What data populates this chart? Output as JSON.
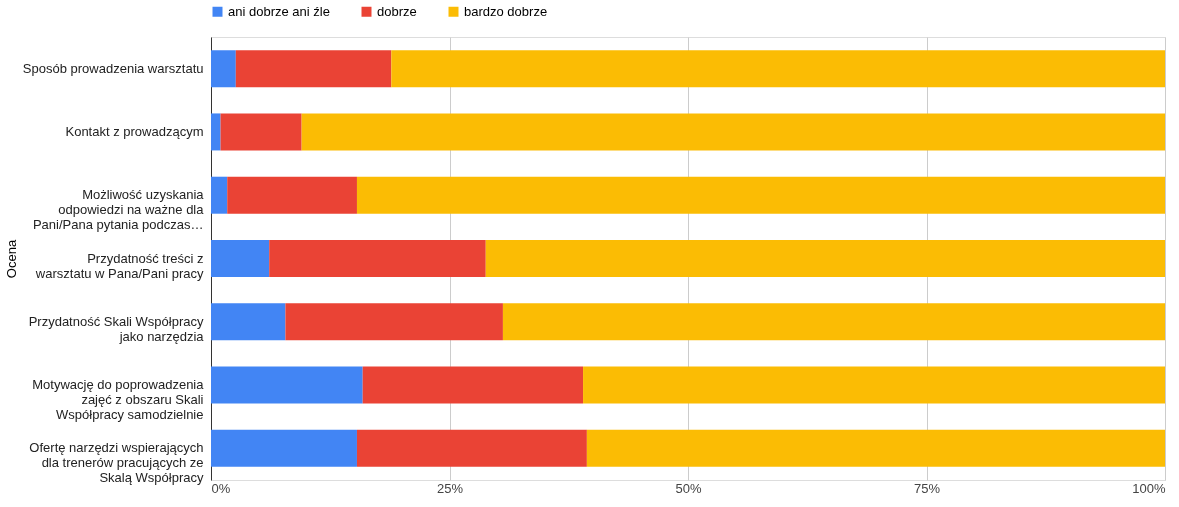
{
  "chart_data": {
    "type": "bar",
    "orientation": "horizontal",
    "stacked": true,
    "ylabel": "Ocena",
    "legend": "top",
    "grid": "x",
    "categories": [
      "Sposób prowadzenia warsztatu",
      "Kontakt z prowadzącym",
      "Możliwość uzyskania odpowiedzi na ważne dla Pani/Pana pytania podczas…",
      "Przydatność treści z warsztatu w Pana/Pani pracy",
      "Przydatność Skali Współpracy jako narzędzia",
      "Motywację do poprowadzenia zajęć z obszaru Skali Współpracy samodzielnie",
      "Ofertę narzędzi wspierających dla trenerów pracujących ze Skalą Współpracy"
    ],
    "series": [
      {
        "name": "ani dobrze ani źle",
        "color": "#4285f4",
        "values": [
          2.6,
          1.0,
          1.7,
          6.1,
          7.8,
          15.9,
          15.3
        ]
      },
      {
        "name": "dobrze",
        "color": "#ea4335",
        "values": [
          16.3,
          8.5,
          13.6,
          22.7,
          22.8,
          23.1,
          24.1
        ]
      },
      {
        "name": "bardzo dobrze",
        "color": "#fbbc04",
        "values": [
          81.1,
          90.5,
          84.7,
          71.2,
          69.4,
          61.0,
          60.6
        ]
      }
    ],
    "xlim": [
      0,
      100
    ],
    "xticks": [
      {
        "value": 0,
        "label": "0%"
      },
      {
        "value": 25,
        "label": "25%"
      },
      {
        "value": 50,
        "label": "50%"
      },
      {
        "value": 75,
        "label": "75%"
      },
      {
        "value": 100,
        "label": "100%"
      }
    ]
  }
}
